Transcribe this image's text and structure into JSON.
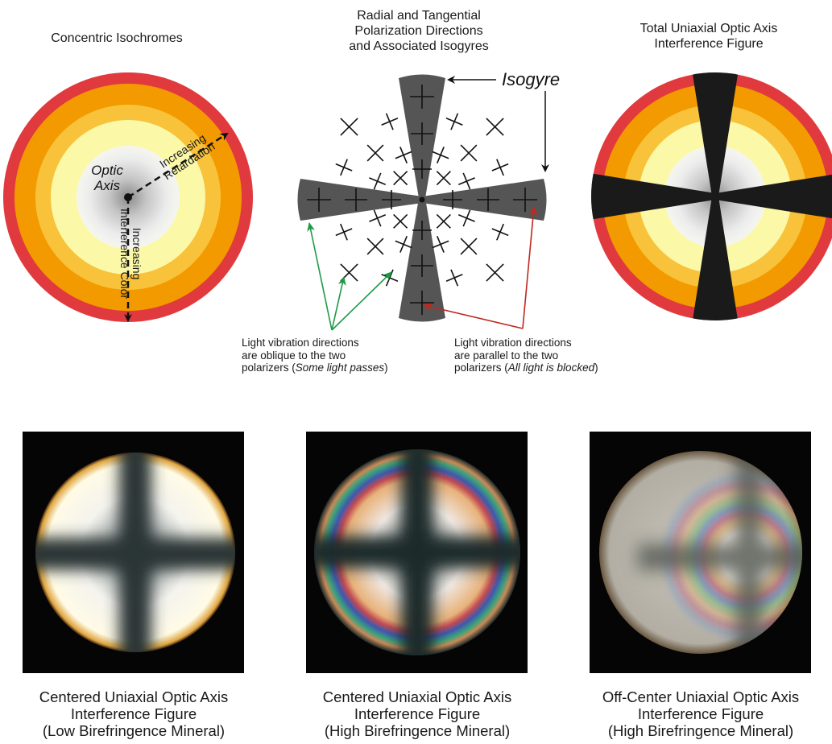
{
  "top_panels": {
    "isochromes_title": "Concentric Isochromes",
    "polarization_title": "Radial and Tangential\nPolarization Directions\nand Associated Isogyres",
    "total_title": "Total Uniaxial Optic Axis\nInterference Figure"
  },
  "isochromes": {
    "optic_axis_line1": "Optic",
    "optic_axis_line2": "Axis",
    "arrow1_line1": "Increasing",
    "arrow1_line2": "Retardation",
    "arrow2_line1": "Increasing",
    "arrow2_line2": "Interference Color",
    "ring_colors": [
      "#e03a3e",
      "#f39a00",
      "#f8c23a",
      "#fbf8a8",
      "#e8e8e8",
      "#bcbcbc"
    ]
  },
  "polarization": {
    "isogyre_label": "Isogyre",
    "note_left_line1": "Light vibration directions",
    "note_left_line2": "are oblique to the two",
    "note_left_line3_plain": "polarizers (",
    "note_left_line3_italic": "Some light passes",
    "note_left_line3_end": ")",
    "note_right_line1": "Light vibration directions",
    "note_right_line2": "are parallel to the two",
    "note_right_line3_plain": "polarizers (",
    "note_right_line3_italic": "All light is blocked",
    "note_right_line3_end": ")",
    "isogyre_color": "#555555",
    "oblique_arrow_color": "#1e9a46",
    "parallel_arrow_color": "#c0281e"
  },
  "photos": [
    {
      "caption": "Centered Uniaxial Optic Axis\nInterference Figure\n(Low Birefringence Mineral)"
    },
    {
      "caption": "Centered Uniaxial Optic Axis\nInterference Figure\n(High Birefringence Mineral)"
    },
    {
      "caption": "Off-Center Uniaxial Optic Axis\nInterference Figure\n(High Birefringence Mineral)"
    }
  ]
}
